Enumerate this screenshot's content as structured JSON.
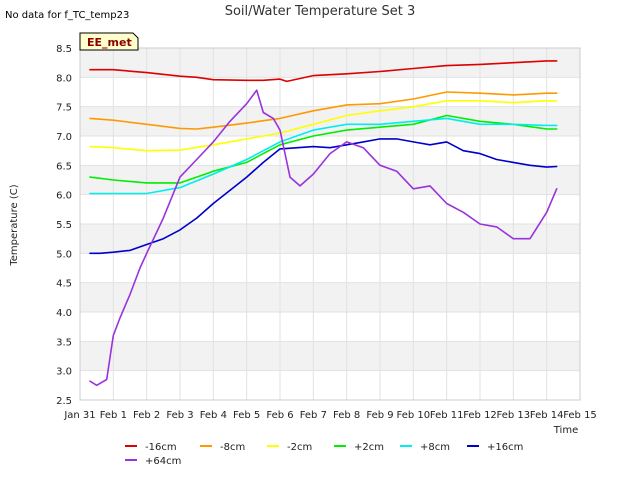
{
  "chart_data": {
    "type": "line",
    "title": "Soil/Water Temperature Set 3",
    "note": "No data for f_TC_temp23",
    "badge": "EE_met",
    "xlabel": "Time",
    "ylabel": "Temperature (C)",
    "xlim": [
      0,
      15
    ],
    "ylim": [
      2.5,
      8.5
    ],
    "x_ticks": [
      0,
      1,
      2,
      3,
      4,
      5,
      6,
      7,
      8,
      9,
      10,
      11,
      12,
      13,
      14,
      15
    ],
    "x_tick_labels": [
      "Jan 31",
      "Feb 1",
      "Feb 2",
      "Feb 3",
      "Feb 4",
      "Feb 5",
      "Feb 6",
      "Feb 7",
      "Feb 8",
      "Feb 9",
      "Feb 10",
      "Feb 11",
      "Feb 12",
      "Feb 13",
      "Feb 14",
      "Feb 15"
    ],
    "y_ticks": [
      2.5,
      3.0,
      3.5,
      4.0,
      4.5,
      5.0,
      5.5,
      6.0,
      6.5,
      7.0,
      7.5,
      8.0,
      8.5
    ],
    "y_tick_labels": [
      "2.5",
      "3.0",
      "3.5",
      "4.0",
      "4.5",
      "5.0",
      "5.5",
      "6.0",
      "6.5",
      "7.0",
      "7.5",
      "8.0",
      "8.5"
    ],
    "grid": true,
    "legend_position": "bottom",
    "series": [
      {
        "name": "-16cm",
        "color": "#dd0000",
        "x": [
          0.3,
          1,
          2,
          3,
          3.5,
          4,
          5,
          5.5,
          6,
          6.2,
          7,
          8,
          9,
          10,
          11,
          12,
          13,
          14,
          14.3
        ],
        "y": [
          8.13,
          8.13,
          8.08,
          8.02,
          8.0,
          7.96,
          7.95,
          7.95,
          7.97,
          7.93,
          8.03,
          8.06,
          8.1,
          8.15,
          8.2,
          8.22,
          8.25,
          8.28,
          8.28
        ]
      },
      {
        "name": "-8cm",
        "color": "#ff9900",
        "x": [
          0.3,
          1,
          2,
          3,
          3.5,
          4,
          5,
          5.5,
          6,
          7,
          8,
          9,
          10,
          11,
          12,
          13,
          14,
          14.3
        ],
        "y": [
          7.3,
          7.27,
          7.2,
          7.13,
          7.12,
          7.15,
          7.22,
          7.26,
          7.3,
          7.43,
          7.53,
          7.55,
          7.63,
          7.75,
          7.73,
          7.7,
          7.73,
          7.73
        ]
      },
      {
        "name": "-2cm",
        "color": "#ffff00",
        "x": [
          0.3,
          1,
          2,
          3,
          4,
          5,
          5.5,
          6,
          7,
          8,
          9,
          10,
          11,
          12,
          13,
          14,
          14.3
        ],
        "y": [
          6.82,
          6.8,
          6.75,
          6.76,
          6.85,
          6.95,
          7.0,
          7.05,
          7.2,
          7.35,
          7.43,
          7.5,
          7.6,
          7.6,
          7.57,
          7.6,
          7.6
        ]
      },
      {
        "name": "+2cm",
        "color": "#00ee00",
        "x": [
          0.3,
          1,
          2,
          3,
          3.5,
          4,
          5,
          5.5,
          6,
          7,
          8,
          9,
          10,
          11,
          12,
          13,
          14,
          14.3
        ],
        "y": [
          6.3,
          6.25,
          6.2,
          6.2,
          6.3,
          6.4,
          6.55,
          6.7,
          6.85,
          7.0,
          7.1,
          7.15,
          7.2,
          7.35,
          7.25,
          7.2,
          7.12,
          7.12
        ]
      },
      {
        "name": "+8cm",
        "color": "#00eeee",
        "x": [
          0.3,
          1,
          2,
          3,
          4,
          5,
          5.5,
          6,
          7,
          8,
          9,
          10,
          11,
          12,
          13,
          14,
          14.3
        ],
        "y": [
          6.02,
          6.02,
          6.02,
          6.12,
          6.35,
          6.6,
          6.75,
          6.9,
          7.1,
          7.2,
          7.2,
          7.25,
          7.3,
          7.2,
          7.2,
          7.18,
          7.18
        ]
      },
      {
        "name": "+16cm",
        "color": "#0000cc",
        "x": [
          0.3,
          0.6,
          1,
          1.5,
          2,
          2.5,
          3,
          3.5,
          4,
          5,
          5.5,
          6,
          7,
          7.5,
          8,
          8.5,
          9,
          9.5,
          10,
          10.5,
          11,
          11.5,
          12,
          12.5,
          13,
          13.5,
          14,
          14.3
        ],
        "y": [
          5.0,
          5.0,
          5.02,
          5.05,
          5.15,
          5.25,
          5.4,
          5.6,
          5.85,
          6.3,
          6.55,
          6.78,
          6.82,
          6.8,
          6.85,
          6.9,
          6.95,
          6.95,
          6.9,
          6.85,
          6.9,
          6.75,
          6.7,
          6.6,
          6.55,
          6.5,
          6.47,
          6.48
        ]
      },
      {
        "name": "+64cm",
        "color": "#9933dd",
        "x": [
          0.3,
          0.5,
          0.8,
          1.0,
          1.2,
          1.5,
          1.8,
          2.0,
          2.5,
          3.0,
          3.5,
          4.0,
          4.5,
          5.0,
          5.3,
          5.5,
          5.8,
          6.0,
          6.3,
          6.6,
          7.0,
          7.5,
          8.0,
          8.5,
          9.0,
          9.5,
          10.0,
          10.5,
          11.0,
          11.5,
          12.0,
          12.5,
          13.0,
          13.5,
          14.0,
          14.3
        ],
        "y": [
          2.82,
          2.75,
          2.85,
          3.6,
          3.9,
          4.3,
          4.75,
          5.0,
          5.6,
          6.3,
          6.6,
          6.9,
          7.25,
          7.55,
          7.78,
          7.4,
          7.3,
          7.1,
          6.3,
          6.15,
          6.35,
          6.7,
          6.9,
          6.8,
          6.5,
          6.4,
          6.1,
          6.15,
          5.85,
          5.7,
          5.5,
          5.45,
          5.25,
          5.25,
          5.7,
          6.1
        ]
      }
    ]
  }
}
